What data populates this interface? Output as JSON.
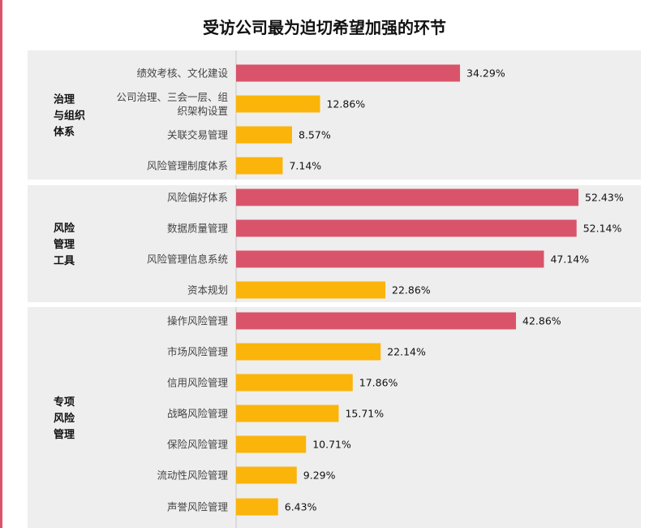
{
  "colors": {
    "highlight": "#d9546a",
    "normal": "#fbb40a",
    "panel": "#eeeeee",
    "accent": "#d9546a"
  },
  "chart_data": {
    "type": "bar",
    "orientation": "horizontal",
    "title": "受访公司最为迫切希望加强的环节",
    "xlim": [
      0,
      60
    ],
    "grid": false,
    "groups": [
      {
        "name": [
          "治理",
          "与组织",
          "体系"
        ],
        "items": [
          {
            "label": [
              "绩效考核、文化建设"
            ],
            "value": 34.29,
            "value_label": "34.29%",
            "highlight": true
          },
          {
            "label": [
              "公司治理、三会一层、组",
              "织架构设置"
            ],
            "value": 12.86,
            "value_label": "12.86%",
            "highlight": false
          },
          {
            "label": [
              "关联交易管理"
            ],
            "value": 8.57,
            "value_label": "8.57%",
            "highlight": false
          },
          {
            "label": [
              "风险管理制度体系"
            ],
            "value": 7.14,
            "value_label": "7.14%",
            "highlight": false
          }
        ]
      },
      {
        "name": [
          "风险",
          "管理",
          "工具"
        ],
        "items": [
          {
            "label": [
              "风险偏好体系"
            ],
            "value": 52.43,
            "value_label": "52.43%",
            "highlight": true
          },
          {
            "label": [
              "数据质量管理"
            ],
            "value": 52.14,
            "value_label": "52.14%",
            "highlight": true
          },
          {
            "label": [
              "风险管理信息系统"
            ],
            "value": 47.14,
            "value_label": "47.14%",
            "highlight": true
          },
          {
            "label": [
              "资本规划"
            ],
            "value": 22.86,
            "value_label": "22.86%",
            "highlight": false
          }
        ]
      },
      {
        "name": [
          "专项",
          "风险",
          "管理"
        ],
        "items": [
          {
            "label": [
              "操作风险管理"
            ],
            "value": 42.86,
            "value_label": "42.86%",
            "highlight": true
          },
          {
            "label": [
              "市场风险管理"
            ],
            "value": 22.14,
            "value_label": "22.14%",
            "highlight": false
          },
          {
            "label": [
              "信用风险管理"
            ],
            "value": 17.86,
            "value_label": "17.86%",
            "highlight": false
          },
          {
            "label": [
              "战略风险管理"
            ],
            "value": 15.71,
            "value_label": "15.71%",
            "highlight": false
          },
          {
            "label": [
              "保险风险管理"
            ],
            "value": 10.71,
            "value_label": "10.71%",
            "highlight": false
          },
          {
            "label": [
              "流动性风险管理"
            ],
            "value": 9.29,
            "value_label": "9.29%",
            "highlight": false
          },
          {
            "label": [
              "声誉风险管理"
            ],
            "value": 6.43,
            "value_label": "6.43%",
            "highlight": false
          }
        ]
      }
    ]
  }
}
